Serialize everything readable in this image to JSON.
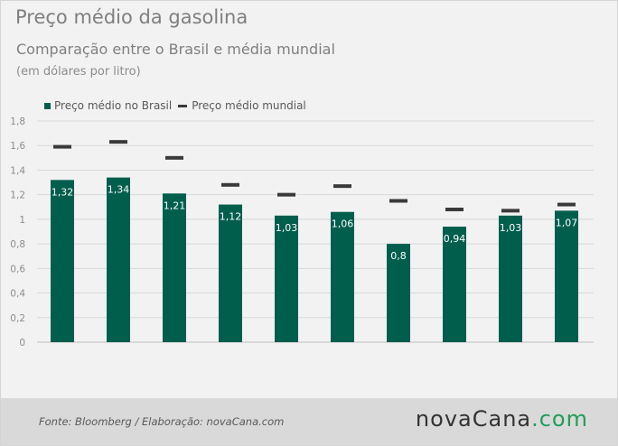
{
  "chart_data": {
    "type": "bar",
    "title": "Preço médio da gasolina",
    "subtitle": "Comparação entre o Brasil e média mundial",
    "unit_note": "(em dólares por litro)",
    "categories": [
      "",
      "",
      "",
      "",
      "",
      "",
      "",
      "",
      "",
      ""
    ],
    "series": [
      {
        "name": "Preço médio no Brasil",
        "mark": "bar",
        "color": "#005e4d",
        "values": [
          1.32,
          1.34,
          1.21,
          1.12,
          1.03,
          1.06,
          0.8,
          0.94,
          1.03,
          1.07
        ],
        "data_labels": [
          "1,32",
          "1,34",
          "1,21",
          "1,12",
          "1,03",
          "1,06",
          "0,8",
          "0,94",
          "1,03",
          "1,07"
        ]
      },
      {
        "name": "Preço médio mundial",
        "mark": "dash",
        "color": "#3a3a3a",
        "values": [
          1.59,
          1.63,
          1.5,
          1.28,
          1.2,
          1.27,
          1.15,
          1.08,
          1.07,
          1.12
        ]
      }
    ],
    "ylim": [
      0,
      1.8
    ],
    "y_ticks": [
      0,
      0.2,
      0.4,
      0.6,
      0.8,
      1,
      1.2,
      1.4,
      1.6,
      1.8
    ],
    "y_tick_labels": [
      "0",
      "0,2",
      "0,4",
      "0,6",
      "0,8",
      "1",
      "1,2",
      "1,4",
      "1,6",
      "1,8"
    ],
    "grid": true,
    "legend_position": "top-left"
  },
  "footer": {
    "source": "Fonte: Bloomberg / Elaboração: novaCana.com",
    "logo_main": "novaCana",
    "logo_suffix": ".com"
  },
  "colors": {
    "background": "#f2f2f2",
    "footer_background": "#d9d9d9",
    "logo_accent": "#1e9e58"
  }
}
